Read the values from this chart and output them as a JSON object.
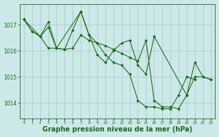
{
  "background_color": "#cce8e8",
  "grid_color": "#aacccc",
  "line_color": "#1a6b1a",
  "marker_color": "#1a6b1a",
  "xlabel": "Graphe pression niveau de la mer (hPa)",
  "xlabel_fontsize": 7,
  "xtick_labels": [
    "0",
    "1",
    "2",
    "3",
    "4",
    "5",
    "6",
    "7",
    "8",
    "9",
    "10",
    "11",
    "12",
    "13",
    "14",
    "15",
    "16",
    "17",
    "18",
    "19",
    "20",
    "21",
    "22",
    "23"
  ],
  "yticks": [
    1014,
    1015,
    1016,
    1017
  ],
  "ylim": [
    1013.4,
    1017.8
  ],
  "xlim": [
    -0.5,
    23.5
  ],
  "series": [
    {
      "x": [
        0,
        1,
        2,
        3,
        4,
        5,
        6,
        7,
        8,
        9,
        10,
        11,
        12,
        13,
        14,
        15,
        16,
        17,
        18,
        19,
        20,
        21,
        22,
        23
      ],
      "y": [
        1017.2,
        1016.75,
        1016.55,
        1017.1,
        1016.1,
        1016.05,
        1016.1,
        1016.6,
        1016.4,
        1016.3,
        1016.2,
        1016.05,
        1015.9,
        1015.75,
        1015.6,
        1016.4,
        1014.1,
        1013.85,
        1013.85,
        1013.78,
        1014.3,
        1015.0,
        1015.0,
        1014.9
      ]
    },
    {
      "x": [
        0,
        1,
        2,
        3,
        4,
        7,
        8,
        9,
        10,
        11,
        12,
        13,
        14,
        15,
        16,
        20,
        21,
        22,
        23
      ],
      "y": [
        1017.2,
        1016.75,
        1016.55,
        1016.9,
        1016.1,
        1017.5,
        1016.6,
        1015.85,
        1015.55,
        1016.0,
        1016.3,
        1016.4,
        1015.45,
        1015.1,
        1016.55,
        1014.3,
        1015.55,
        1015.0,
        1014.9
      ]
    },
    {
      "x": [
        0,
        2,
        3,
        4,
        5,
        6,
        7,
        8,
        9,
        10,
        11,
        12,
        13,
        14,
        15,
        16,
        17,
        18,
        19,
        20,
        21
      ],
      "y": [
        1017.2,
        1016.55,
        1016.1,
        1016.1,
        1016.05,
        1016.8,
        1017.5,
        1016.6,
        1016.3,
        1015.85,
        1015.55,
        1015.45,
        1015.1,
        1014.1,
        1013.85,
        1013.85,
        1013.78,
        1013.78,
        1014.3,
        1015.0,
        1014.9
      ]
    }
  ]
}
